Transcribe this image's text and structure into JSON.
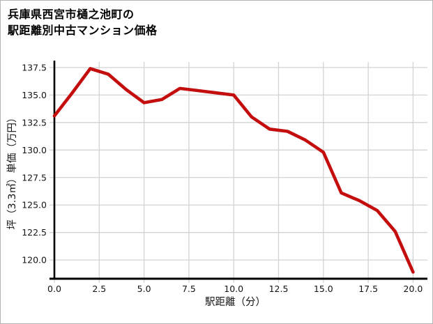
{
  "title": {
    "line1": "兵庫県西宮市樋之池町の",
    "line2": "駅距離別中古マンション価格"
  },
  "chart_data": {
    "type": "line",
    "title": "兵庫県西宮市樋之池町の駅距離別中古マンション価格",
    "xlabel": "駅距離（分）",
    "ylabel": "坪（3.3㎡）単価（万円）",
    "x": [
      0,
      1,
      2,
      3,
      4,
      5,
      6,
      7,
      8,
      9,
      10,
      11,
      12,
      13,
      14,
      15,
      16,
      17,
      18,
      19,
      20
    ],
    "y": [
      133.1,
      135.2,
      137.4,
      136.9,
      135.5,
      134.3,
      134.6,
      135.6,
      135.4,
      135.2,
      135.0,
      133.0,
      131.9,
      131.7,
      130.9,
      129.8,
      126.1,
      125.4,
      124.5,
      122.6,
      118.9
    ],
    "xlim": [
      0,
      20.8
    ],
    "ylim": [
      118.3,
      138.0
    ],
    "xticks": [
      0,
      2.5,
      5,
      7.5,
      10,
      12.5,
      15,
      17.5,
      20
    ],
    "xtick_labels": [
      "0.0",
      "2.5",
      "5.0",
      "7.5",
      "10.0",
      "12.5",
      "15.0",
      "17.5",
      "20.0"
    ],
    "yticks": [
      120.0,
      122.5,
      125.0,
      127.5,
      130.0,
      132.5,
      135.0,
      137.5
    ],
    "ytick_labels": [
      "120.0",
      "122.5",
      "125.0",
      "127.5",
      "130.0",
      "132.5",
      "135.0",
      "137.5"
    ],
    "grid": true,
    "legend": "none",
    "marker": "none",
    "line_color": "#c40d0d",
    "grid_color": "#d3d3d3",
    "axis_color": "#000000",
    "background": "#ffffff"
  }
}
